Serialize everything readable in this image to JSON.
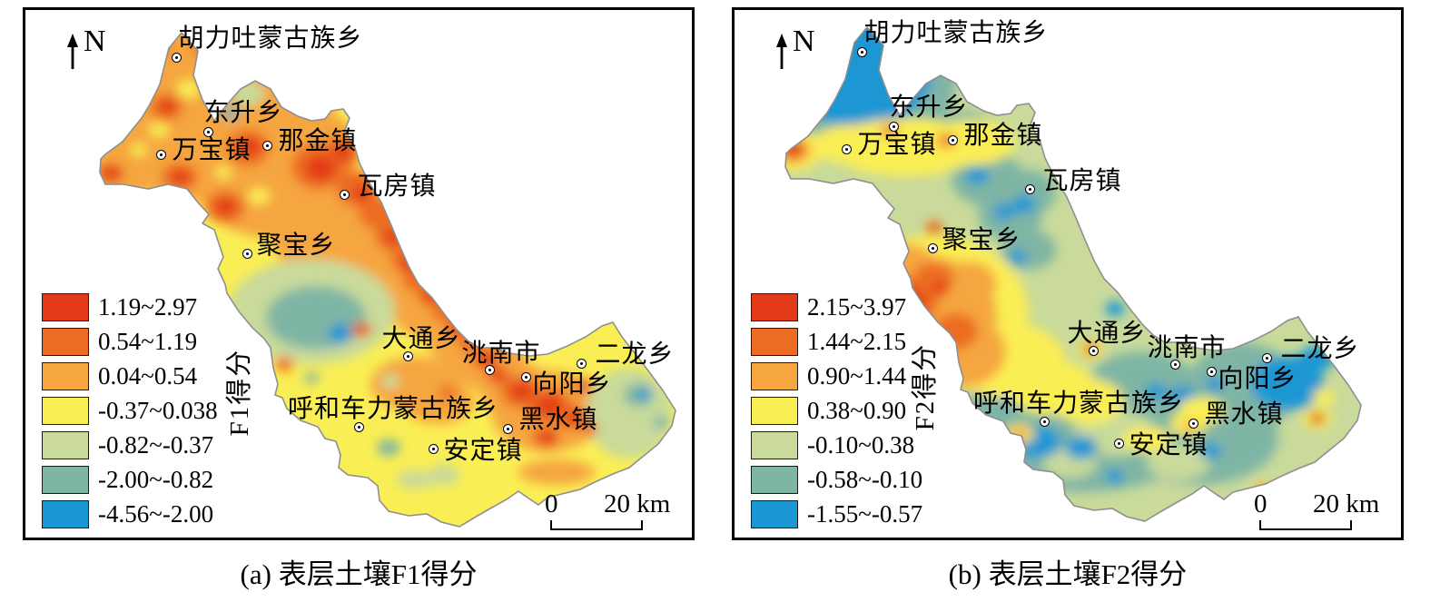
{
  "figure": {
    "class_colors": [
      "#e23a16",
      "#ec6c24",
      "#f5a641",
      "#faee55",
      "#c9da9a",
      "#7fb5a5",
      "#1a97d3"
    ],
    "outline_color": "#8f8f8f",
    "places": [
      "胡力吐蒙古族乡",
      "东升乡",
      "万宝镇",
      "那金镇",
      "瓦房镇",
      "聚宝乡",
      "大通乡",
      "洮南市",
      "二龙乡",
      "向阳乡",
      "呼和车力蒙古族乡",
      "黑水镇",
      "安定镇"
    ],
    "panels": [
      {
        "key": "a",
        "caption": "(a) 表层土壤F1得分",
        "north": "N",
        "axis_label": "F1得分",
        "legend_ranges": [
          "1.19~2.97",
          "0.54~1.19",
          "0.04~0.54",
          "-0.37~0.038",
          "-0.82~-0.37",
          "-2.00~-0.82",
          "-4.56~-2.00"
        ],
        "scale": {
          "zero": "0",
          "label": "20 km"
        }
      },
      {
        "key": "b",
        "caption": "(b) 表层土壤F2得分",
        "north": "N",
        "axis_label": "F2得分",
        "legend_ranges": [
          "2.15~3.97",
          "1.44~2.15",
          "0.90~1.44",
          "0.38~0.90",
          "-0.10~0.38",
          "-0.58~-0.10",
          "-1.55~-0.57"
        ],
        "scale": {
          "zero": "0",
          "label": "20 km"
        }
      }
    ]
  },
  "chart_data": [
    {
      "type": "heatmap",
      "subtype": "interpolated-choropleth-map",
      "title": "(a) 表层土壤F1得分",
      "variable": "F1得分",
      "legend_position": "left",
      "classes": [
        {
          "range": [
            1.19,
            2.97
          ],
          "label": "1.19~2.97",
          "color": "#e23a16"
        },
        {
          "range": [
            0.54,
            1.19
          ],
          "label": "0.54~1.19",
          "color": "#ec6c24"
        },
        {
          "range": [
            0.04,
            0.54
          ],
          "label": "0.04~0.54",
          "color": "#f5a641"
        },
        {
          "range": [
            -0.37,
            0.038
          ],
          "label": "-0.37~0.038",
          "color": "#faee55"
        },
        {
          "range": [
            -0.82,
            -0.37
          ],
          "label": "-0.82~-0.37",
          "color": "#c9da9a"
        },
        {
          "range": [
            -2.0,
            -0.82
          ],
          "label": "-2.00~-0.82",
          "color": "#7fb5a5"
        },
        {
          "range": [
            -4.56,
            -2.0
          ],
          "label": "-4.56~-2.00",
          "color": "#1a97d3"
        }
      ],
      "places": [
        "胡力吐蒙古族乡",
        "东升乡",
        "万宝镇",
        "那金镇",
        "瓦房镇",
        "聚宝乡",
        "大通乡",
        "洮南市",
        "二龙乡",
        "向阳乡",
        "呼和车力蒙古族乡",
        "黑水镇",
        "安定镇"
      ],
      "scale_bar_km": 20,
      "north_arrow": true
    },
    {
      "type": "heatmap",
      "subtype": "interpolated-choropleth-map",
      "title": "(b) 表层土壤F2得分",
      "variable": "F2得分",
      "legend_position": "left",
      "classes": [
        {
          "range": [
            2.15,
            3.97
          ],
          "label": "2.15~3.97",
          "color": "#e23a16"
        },
        {
          "range": [
            1.44,
            2.15
          ],
          "label": "1.44~2.15",
          "color": "#ec6c24"
        },
        {
          "range": [
            0.9,
            1.44
          ],
          "label": "0.90~1.44",
          "color": "#f5a641"
        },
        {
          "range": [
            0.38,
            0.9
          ],
          "label": "0.38~0.90",
          "color": "#faee55"
        },
        {
          "range": [
            -0.1,
            0.38
          ],
          "label": "-0.10~0.38",
          "color": "#c9da9a"
        },
        {
          "range": [
            -0.58,
            -0.1
          ],
          "label": "-0.58~-0.10",
          "color": "#7fb5a5"
        },
        {
          "range": [
            -1.55,
            -0.57
          ],
          "label": "-1.55~-0.57",
          "color": "#1a97d3"
        }
      ],
      "places": [
        "胡力吐蒙古族乡",
        "东升乡",
        "万宝镇",
        "那金镇",
        "瓦房镇",
        "聚宝乡",
        "大通乡",
        "洮南市",
        "二龙乡",
        "向阳乡",
        "呼和车力蒙古族乡",
        "黑水镇",
        "安定镇"
      ],
      "scale_bar_km": 20,
      "north_arrow": true
    }
  ]
}
